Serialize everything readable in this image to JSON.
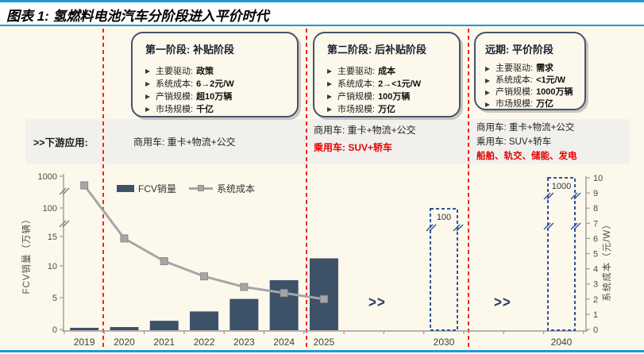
{
  "header": {
    "title": "图表 1: 氢燃料电池汽车分阶段进入平价时代"
  },
  "stages": [
    {
      "title": "第一阶段: 补贴阶段",
      "bullets": [
        {
          "label": "主要驱动:",
          "value": "政策"
        },
        {
          "label": "系统成本:",
          "value": "6→2元/W"
        },
        {
          "label": "产销规模:",
          "value": "超10万辆"
        },
        {
          "label": "市场规模:",
          "value": "千亿"
        }
      ]
    },
    {
      "title": "第二阶段: 后补贴阶段",
      "bullets": [
        {
          "label": "主要驱动:",
          "value": "成本"
        },
        {
          "label": "系统成本:",
          "value": "2→<1元/W"
        },
        {
          "label": "产销规模:",
          "value": "100万辆"
        },
        {
          "label": "市场规模:",
          "value": "万亿"
        }
      ]
    },
    {
      "title": "远期: 平价阶段",
      "bullets": [
        {
          "label": "主要驱动:",
          "value": "需求"
        },
        {
          "label": "系统成本:",
          "value": "<1元/W"
        },
        {
          "label": "产销规模:",
          "value": "1000万辆"
        },
        {
          "label": "市场规模:",
          "value": "万亿"
        }
      ]
    }
  ],
  "applications": {
    "label": ">>下游应用:",
    "columns": [
      {
        "lines": [
          {
            "text": "商用车: 重卡+物流+公交",
            "emphasis": false
          }
        ]
      },
      {
        "lines": [
          {
            "text": "商用车: 重卡+物流+公交",
            "emphasis": false
          },
          {
            "text": "乘用车: SUV+轿车",
            "emphasis": true
          }
        ]
      },
      {
        "lines": [
          {
            "text": "商用车: 重卡+物流+公交",
            "emphasis": false
          },
          {
            "text": "乘用车: SUV+轿车",
            "emphasis": false
          },
          {
            "text": "船舶、轨交、储能、发电",
            "emphasis": true
          }
        ]
      }
    ]
  },
  "icons": {
    "bullet": "arrow-right"
  },
  "chart_data": {
    "type": "bar",
    "categories": [
      "2019",
      "2020",
      "2021",
      "2022",
      "2023",
      "2024",
      "2025"
    ],
    "series": [
      {
        "name": "FCV销量",
        "type": "bar",
        "axis": "left",
        "values": [
          0.3,
          0.5,
          1.5,
          3,
          5,
          8,
          11.5
        ]
      },
      {
        "name": "系统成本",
        "type": "line",
        "axis": "right",
        "values": [
          9.5,
          6,
          4.5,
          3.5,
          2.8,
          2.4,
          2
        ]
      }
    ],
    "future_bars": [
      {
        "category": "2030",
        "label": "100",
        "style": "dashed-outline",
        "axis_break": true
      },
      {
        "category": "2040",
        "label": "1000",
        "style": "dashed-outline",
        "axis_break": true
      }
    ],
    "left_axis": {
      "title": "FCV销量（万辆）",
      "tick_labels": [
        "0",
        "5",
        "10",
        "15",
        "100",
        "1000"
      ],
      "broken": true
    },
    "right_axis": {
      "title": "系统成本（元/W）",
      "min": 0,
      "max": 10,
      "tick_step": 1
    },
    "legend": {
      "items": [
        "FCV销量",
        "系统成本"
      ],
      "position": "top-left"
    },
    "fast_forward_symbol": ">>",
    "colors": {
      "bar": "#3d5168",
      "line": "#a6a6a6",
      "marker_edge": "#8b8b8b",
      "future_bar_border": "#2f5597",
      "divider_red": "#f3251b",
      "accent_blue": "#1e9bd5",
      "navy": "#44546a",
      "background": "#fdf8ec",
      "band_gray": "#f1f0ec",
      "red_text": "#e60000"
    }
  }
}
